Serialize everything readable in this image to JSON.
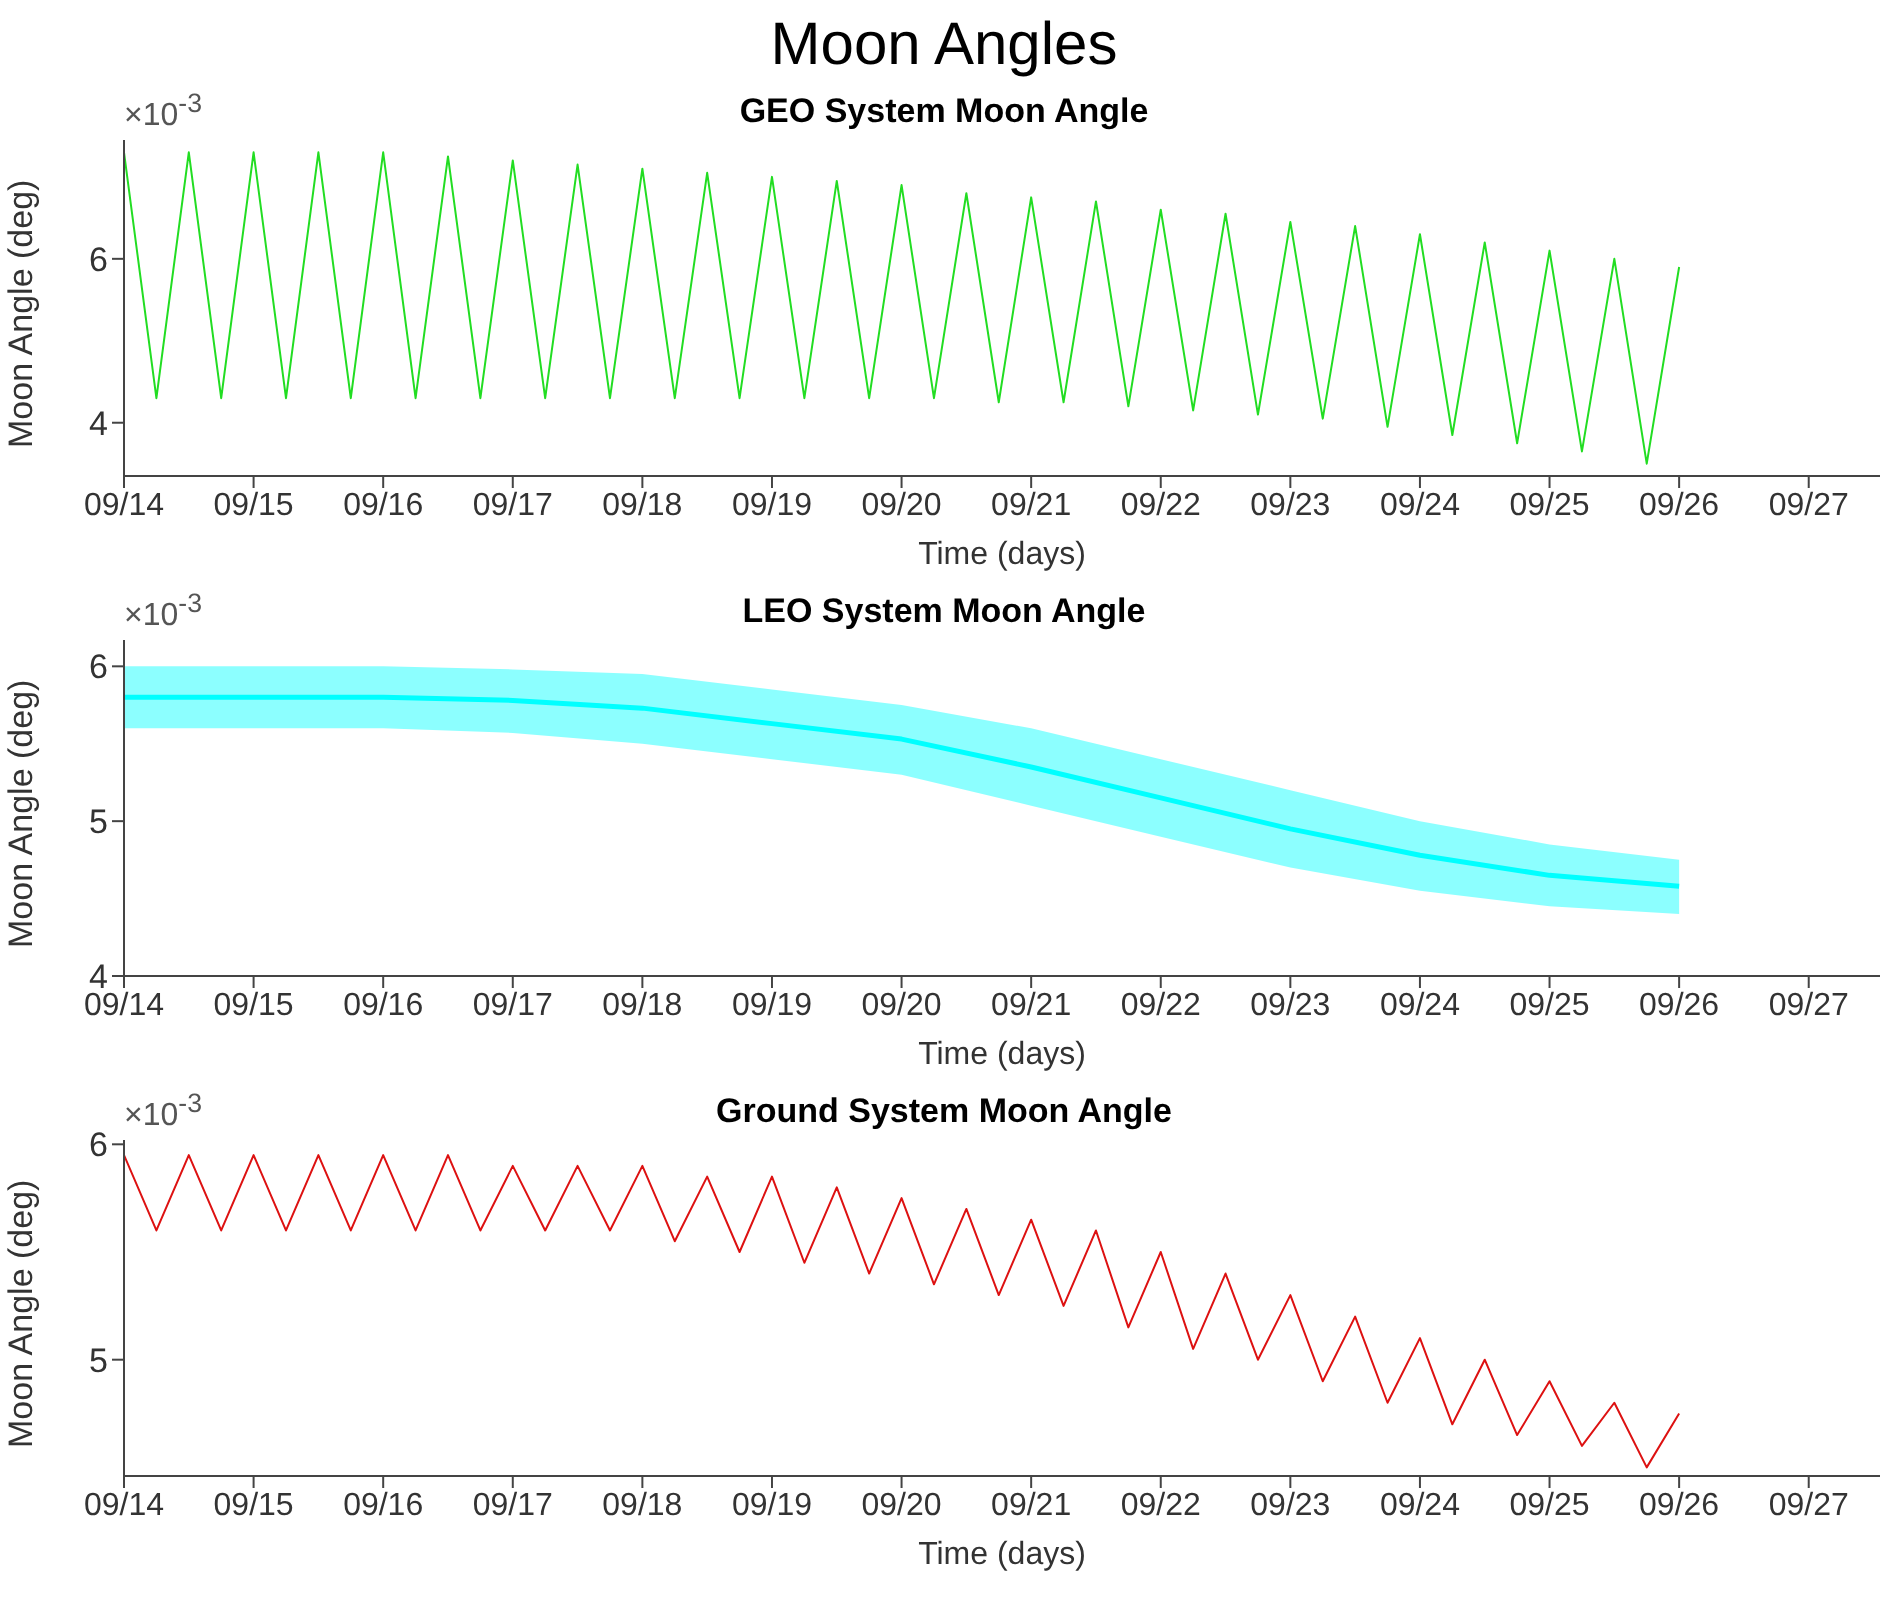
{
  "chart_data": [
    {
      "type": "other",
      "title": "Moon Angles"
    },
    {
      "type": "line",
      "title": "GEO System Moon Angle",
      "xlabel": "Time (days)",
      "ylabel": "Moon Angle (deg)",
      "annotations": [
        "×10$^{-3}$"
      ],
      "xlim": [
        "--09-14",
        "--09-27T13:12"
      ],
      "xticks": [
        {
          "value": "--09-14",
          "label": "09/14"
        },
        {
          "value": "--09-15",
          "label": "09/15"
        },
        {
          "value": "--09-16",
          "label": "09/16"
        },
        {
          "value": "--09-17",
          "label": "09/17"
        },
        {
          "value": "--09-18",
          "label": "09/18"
        },
        {
          "value": "--09-19",
          "label": "09/19"
        },
        {
          "value": "--09-20",
          "label": "09/20"
        },
        {
          "value": "--09-21",
          "label": "09/21"
        },
        {
          "value": "--09-22",
          "label": "09/22"
        },
        {
          "value": "--09-23",
          "label": "09/23"
        },
        {
          "value": "--09-24",
          "label": "09/24"
        },
        {
          "value": "--09-25",
          "label": "09/25"
        },
        {
          "value": "--09-26",
          "label": "09/26"
        },
        {
          "value": "--09-27",
          "label": "09/27"
        }
      ],
      "ylim": [
        3.35,
        7.45
      ],
      "yticks": [
        4,
        6
      ],
      "series": [
        {
          "color": "#22dd22",
          "x": [
            "--09-14T00:00",
            "--09-14T06:00",
            "--09-14T12:00",
            "--09-14T18:00",
            "--09-15T00:00",
            "--09-15T06:00",
            "--09-15T12:00",
            "--09-15T18:00",
            "--09-16T00:00",
            "--09-16T06:00",
            "--09-16T12:00",
            "--09-16T18:00",
            "--09-17T00:00",
            "--09-17T06:00",
            "--09-17T12:00",
            "--09-17T18:00",
            "--09-18T00:00",
            "--09-18T06:00",
            "--09-18T12:00",
            "--09-18T18:00",
            "--09-19T00:00",
            "--09-19T06:00",
            "--09-19T12:00",
            "--09-19T18:00",
            "--09-20T00:00",
            "--09-20T06:00",
            "--09-20T12:00",
            "--09-20T18:00",
            "--09-21T00:00",
            "--09-21T06:00",
            "--09-21T12:00",
            "--09-21T18:00",
            "--09-22T00:00",
            "--09-22T06:00",
            "--09-22T12:00",
            "--09-22T18:00",
            "--09-23T00:00",
            "--09-23T06:00",
            "--09-23T12:00",
            "--09-23T18:00",
            "--09-24T00:00",
            "--09-24T06:00",
            "--09-24T12:00",
            "--09-24T18:00",
            "--09-25T00:00",
            "--09-25T06:00",
            "--09-25T12:00",
            "--09-25T18:00",
            "--09-26T00:00"
          ],
          "values": [
            7.3,
            4.3,
            7.3,
            4.3,
            7.3,
            4.3,
            7.3,
            4.3,
            7.3,
            4.3,
            7.25,
            4.3,
            7.2,
            4.3,
            7.15,
            4.3,
            7.1,
            4.3,
            7.05,
            4.3,
            7.0,
            4.3,
            6.95,
            4.3,
            6.9,
            4.3,
            6.8,
            4.25,
            6.75,
            4.25,
            6.7,
            4.2,
            6.6,
            4.15,
            6.55,
            4.1,
            6.45,
            4.05,
            6.4,
            3.95,
            6.3,
            3.85,
            6.2,
            3.75,
            6.1,
            3.65,
            6.0,
            3.5,
            5.9
          ]
        }
      ]
    },
    {
      "type": "line",
      "title": "LEO System Moon Angle",
      "xlabel": "Time (days)",
      "ylabel": "Moon Angle (deg)",
      "annotations": [
        "×10$^{-3}$"
      ],
      "xlim": [
        "--09-14",
        "--09-27T13:12"
      ],
      "xticks": [
        {
          "value": "--09-14",
          "label": "09/14"
        },
        {
          "value": "--09-15",
          "label": "09/15"
        },
        {
          "value": "--09-16",
          "label": "09/16"
        },
        {
          "value": "--09-17",
          "label": "09/17"
        },
        {
          "value": "--09-18",
          "label": "09/18"
        },
        {
          "value": "--09-19",
          "label": "09/19"
        },
        {
          "value": "--09-20",
          "label": "09/20"
        },
        {
          "value": "--09-21",
          "label": "09/21"
        },
        {
          "value": "--09-22",
          "label": "09/22"
        },
        {
          "value": "--09-23",
          "label": "09/23"
        },
        {
          "value": "--09-24",
          "label": "09/24"
        },
        {
          "value": "--09-25",
          "label": "09/25"
        },
        {
          "value": "--09-26",
          "label": "09/26"
        },
        {
          "value": "--09-27",
          "label": "09/27"
        }
      ],
      "ylim": [
        4,
        6.17
      ],
      "yticks": [
        4,
        5,
        6
      ],
      "series": [
        {
          "color": "#00ffff",
          "x": [
            "--09-14",
            "--09-15",
            "--09-16",
            "--09-17",
            "--09-18",
            "--09-19",
            "--09-20",
            "--09-21",
            "--09-22",
            "--09-23",
            "--09-24",
            "--09-25",
            "--09-26"
          ],
          "values": [
            5.8,
            5.8,
            5.8,
            5.78,
            5.73,
            5.63,
            5.53,
            5.35,
            5.15,
            4.95,
            4.78,
            4.65,
            4.58
          ],
          "lower": [
            5.6,
            5.6,
            5.6,
            5.57,
            5.5,
            5.4,
            5.3,
            5.1,
            4.9,
            4.7,
            4.55,
            4.45,
            4.4
          ],
          "upper": [
            6.0,
            6.0,
            6.0,
            5.98,
            5.95,
            5.85,
            5.75,
            5.6,
            5.4,
            5.2,
            5.0,
            4.85,
            4.75
          ]
        }
      ]
    },
    {
      "type": "line",
      "title": "Ground System Moon Angle",
      "xlabel": "Time (days)",
      "ylabel": "Moon Angle (deg)",
      "annotations": [
        "×10$^{-3}$"
      ],
      "xlim": [
        "--09-14",
        "--09-27T13:12"
      ],
      "xticks": [
        {
          "value": "--09-14",
          "label": "09/14"
        },
        {
          "value": "--09-15",
          "label": "09/15"
        },
        {
          "value": "--09-16",
          "label": "09/16"
        },
        {
          "value": "--09-17",
          "label": "09/17"
        },
        {
          "value": "--09-18",
          "label": "09/18"
        },
        {
          "value": "--09-19",
          "label": "09/19"
        },
        {
          "value": "--09-20",
          "label": "09/20"
        },
        {
          "value": "--09-21",
          "label": "09/21"
        },
        {
          "value": "--09-22",
          "label": "09/22"
        },
        {
          "value": "--09-23",
          "label": "09/23"
        },
        {
          "value": "--09-24",
          "label": "09/24"
        },
        {
          "value": "--09-25",
          "label": "09/25"
        },
        {
          "value": "--09-26",
          "label": "09/26"
        },
        {
          "value": "--09-27",
          "label": "09/27"
        }
      ],
      "ylim": [
        4.46,
        6.02
      ],
      "yticks": [
        5,
        6
      ],
      "series": [
        {
          "color": "#dd1111",
          "x": [
            "--09-14T00:00",
            "--09-14T06:00",
            "--09-14T12:00",
            "--09-14T18:00",
            "--09-15T00:00",
            "--09-15T06:00",
            "--09-15T12:00",
            "--09-15T18:00",
            "--09-16T00:00",
            "--09-16T06:00",
            "--09-16T12:00",
            "--09-16T18:00",
            "--09-17T00:00",
            "--09-17T06:00",
            "--09-17T12:00",
            "--09-17T18:00",
            "--09-18T00:00",
            "--09-18T06:00",
            "--09-18T12:00",
            "--09-18T18:00",
            "--09-19T00:00",
            "--09-19T06:00",
            "--09-19T12:00",
            "--09-19T18:00",
            "--09-20T00:00",
            "--09-20T06:00",
            "--09-20T12:00",
            "--09-20T18:00",
            "--09-21T00:00",
            "--09-21T06:00",
            "--09-21T12:00",
            "--09-21T18:00",
            "--09-22T00:00",
            "--09-22T06:00",
            "--09-22T12:00",
            "--09-22T18:00",
            "--09-23T00:00",
            "--09-23T06:00",
            "--09-23T12:00",
            "--09-23T18:00",
            "--09-24T00:00",
            "--09-24T06:00",
            "--09-24T12:00",
            "--09-24T18:00",
            "--09-25T00:00",
            "--09-25T06:00",
            "--09-25T12:00",
            "--09-25T18:00",
            "--09-26T00:00"
          ],
          "values": [
            5.95,
            5.6,
            5.95,
            5.6,
            5.95,
            5.6,
            5.95,
            5.6,
            5.95,
            5.6,
            5.95,
            5.6,
            5.9,
            5.6,
            5.9,
            5.6,
            5.9,
            5.55,
            5.85,
            5.5,
            5.85,
            5.45,
            5.8,
            5.4,
            5.75,
            5.35,
            5.7,
            5.3,
            5.65,
            5.25,
            5.6,
            5.15,
            5.5,
            5.05,
            5.4,
            5.0,
            5.3,
            4.9,
            5.2,
            4.8,
            5.1,
            4.7,
            5.0,
            4.65,
            4.9,
            4.6,
            4.8,
            4.5,
            4.75
          ]
        }
      ]
    }
  ]
}
